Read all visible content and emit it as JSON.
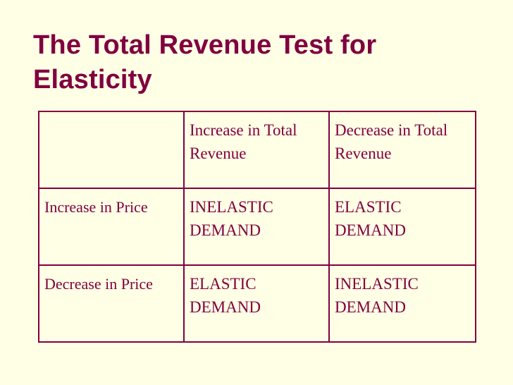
{
  "slide": {
    "title": "The Total Revenue Test for Elasticity"
  },
  "table": {
    "corner": "",
    "column_headers": [
      "Increase in Total Revenue",
      "Decrease in Total Revenue"
    ],
    "rows": [
      {
        "label": "Increase in Price",
        "cells": [
          "INELASTIC DEMAND",
          "ELASTIC DEMAND"
        ]
      },
      {
        "label": "Decrease in Price",
        "cells": [
          "ELASTIC DEMAND",
          "INELASTIC DEMAND"
        ]
      }
    ]
  },
  "colors": {
    "background": "#ffffe5",
    "accent": "#800040"
  }
}
